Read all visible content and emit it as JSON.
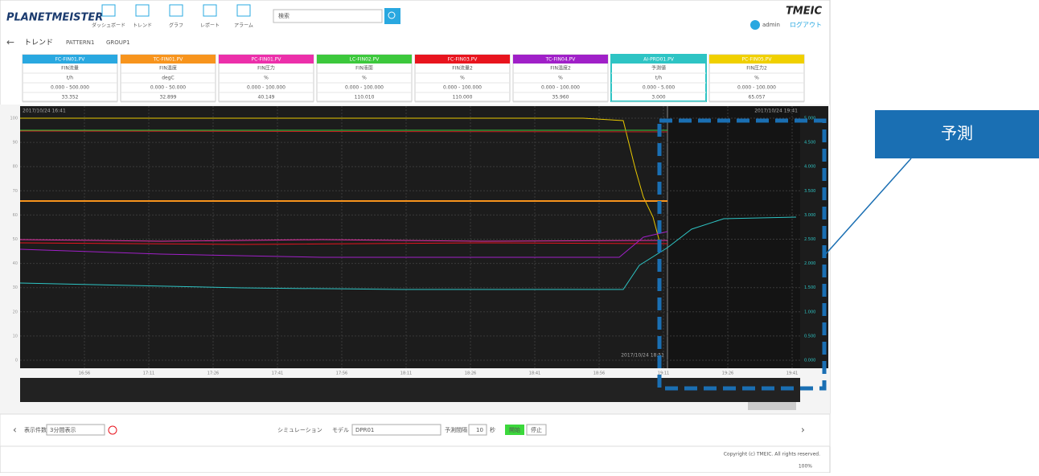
{
  "header": {
    "logo": "PLANETMEISTER",
    "brand": "TMEIC",
    "user": "admin",
    "logout": "ログアウト",
    "search": "検索",
    "nav": [
      "ダッシュボード",
      "トレンド",
      "グラフ",
      "レポート",
      "アラーム"
    ]
  },
  "toolbar": {
    "title": "トレンド",
    "tabs": [
      "PATTERN1",
      "GROUP1"
    ]
  },
  "cards": [
    {
      "tag": "FC-FIN01.PV",
      "rows": [
        "FIN流量",
        "t/h",
        "0.000 - 500.000",
        "33.352"
      ]
    },
    {
      "tag": "TC-FIN01.PV",
      "rows": [
        "FIN温度",
        "degC",
        "0.000 - 50.000",
        "32.899"
      ]
    },
    {
      "tag": "PC-FIN01.PV",
      "rows": [
        "FIN圧力",
        "%",
        "0.000 - 100.000",
        "40.149"
      ]
    },
    {
      "tag": "LC-FIN02.PV",
      "rows": [
        "FIN液面",
        "%",
        "0.000 - 100.000",
        "110.010"
      ]
    },
    {
      "tag": "FC-FIN03.PV",
      "rows": [
        "FIN流量2",
        "%",
        "0.000 - 100.000",
        "110.000"
      ]
    },
    {
      "tag": "TC-FIN04.PV",
      "rows": [
        "FIN温度2",
        "%",
        "0.000 - 100.000",
        "35.960"
      ]
    },
    {
      "tag": "AI-PRD01.PV",
      "rows": [
        "予測値",
        "t/h",
        "0.000 - 5.000",
        "3.000"
      ]
    },
    {
      "tag": "PC-FIN05.PV",
      "rows": [
        "FIN圧力2",
        "%",
        "0.000 - 100.000",
        "65.057"
      ]
    }
  ],
  "chart": {
    "start": "2017/10/24 16:41",
    "end": "2017/10/24 19:41",
    "now": "2017/10/24 18:51",
    "left_ticks": [
      "100",
      "90",
      "80",
      "70",
      "60",
      "50",
      "40",
      "30",
      "20",
      "10",
      "0"
    ],
    "right_ticks": [
      "5.000",
      "4.500",
      "4.000",
      "3.500",
      "3.000",
      "2.500",
      "2.000",
      "1.500",
      "1.000",
      "0.500",
      "0.000"
    ],
    "x_labels": [
      "16:56",
      "17:11",
      "17:26",
      "17:41",
      "17:56",
      "18:11",
      "18:26",
      "18:41",
      "18:56",
      "19:11",
      "19:26",
      "19:41"
    ]
  },
  "bottom": {
    "display": "表示件数",
    "display_value": "3分間表示",
    "sim": "シミュレーション",
    "model": "モデル",
    "model_value": "DPR01",
    "interval": "予測間隔",
    "interval_value": "10",
    "unit": "秒",
    "start": "開始",
    "stop": "停止"
  },
  "footer": {
    "copyright": "Copyright (c) TMEIC. All rights reserved.",
    "zoom": "100%"
  },
  "callout": "予測"
}
